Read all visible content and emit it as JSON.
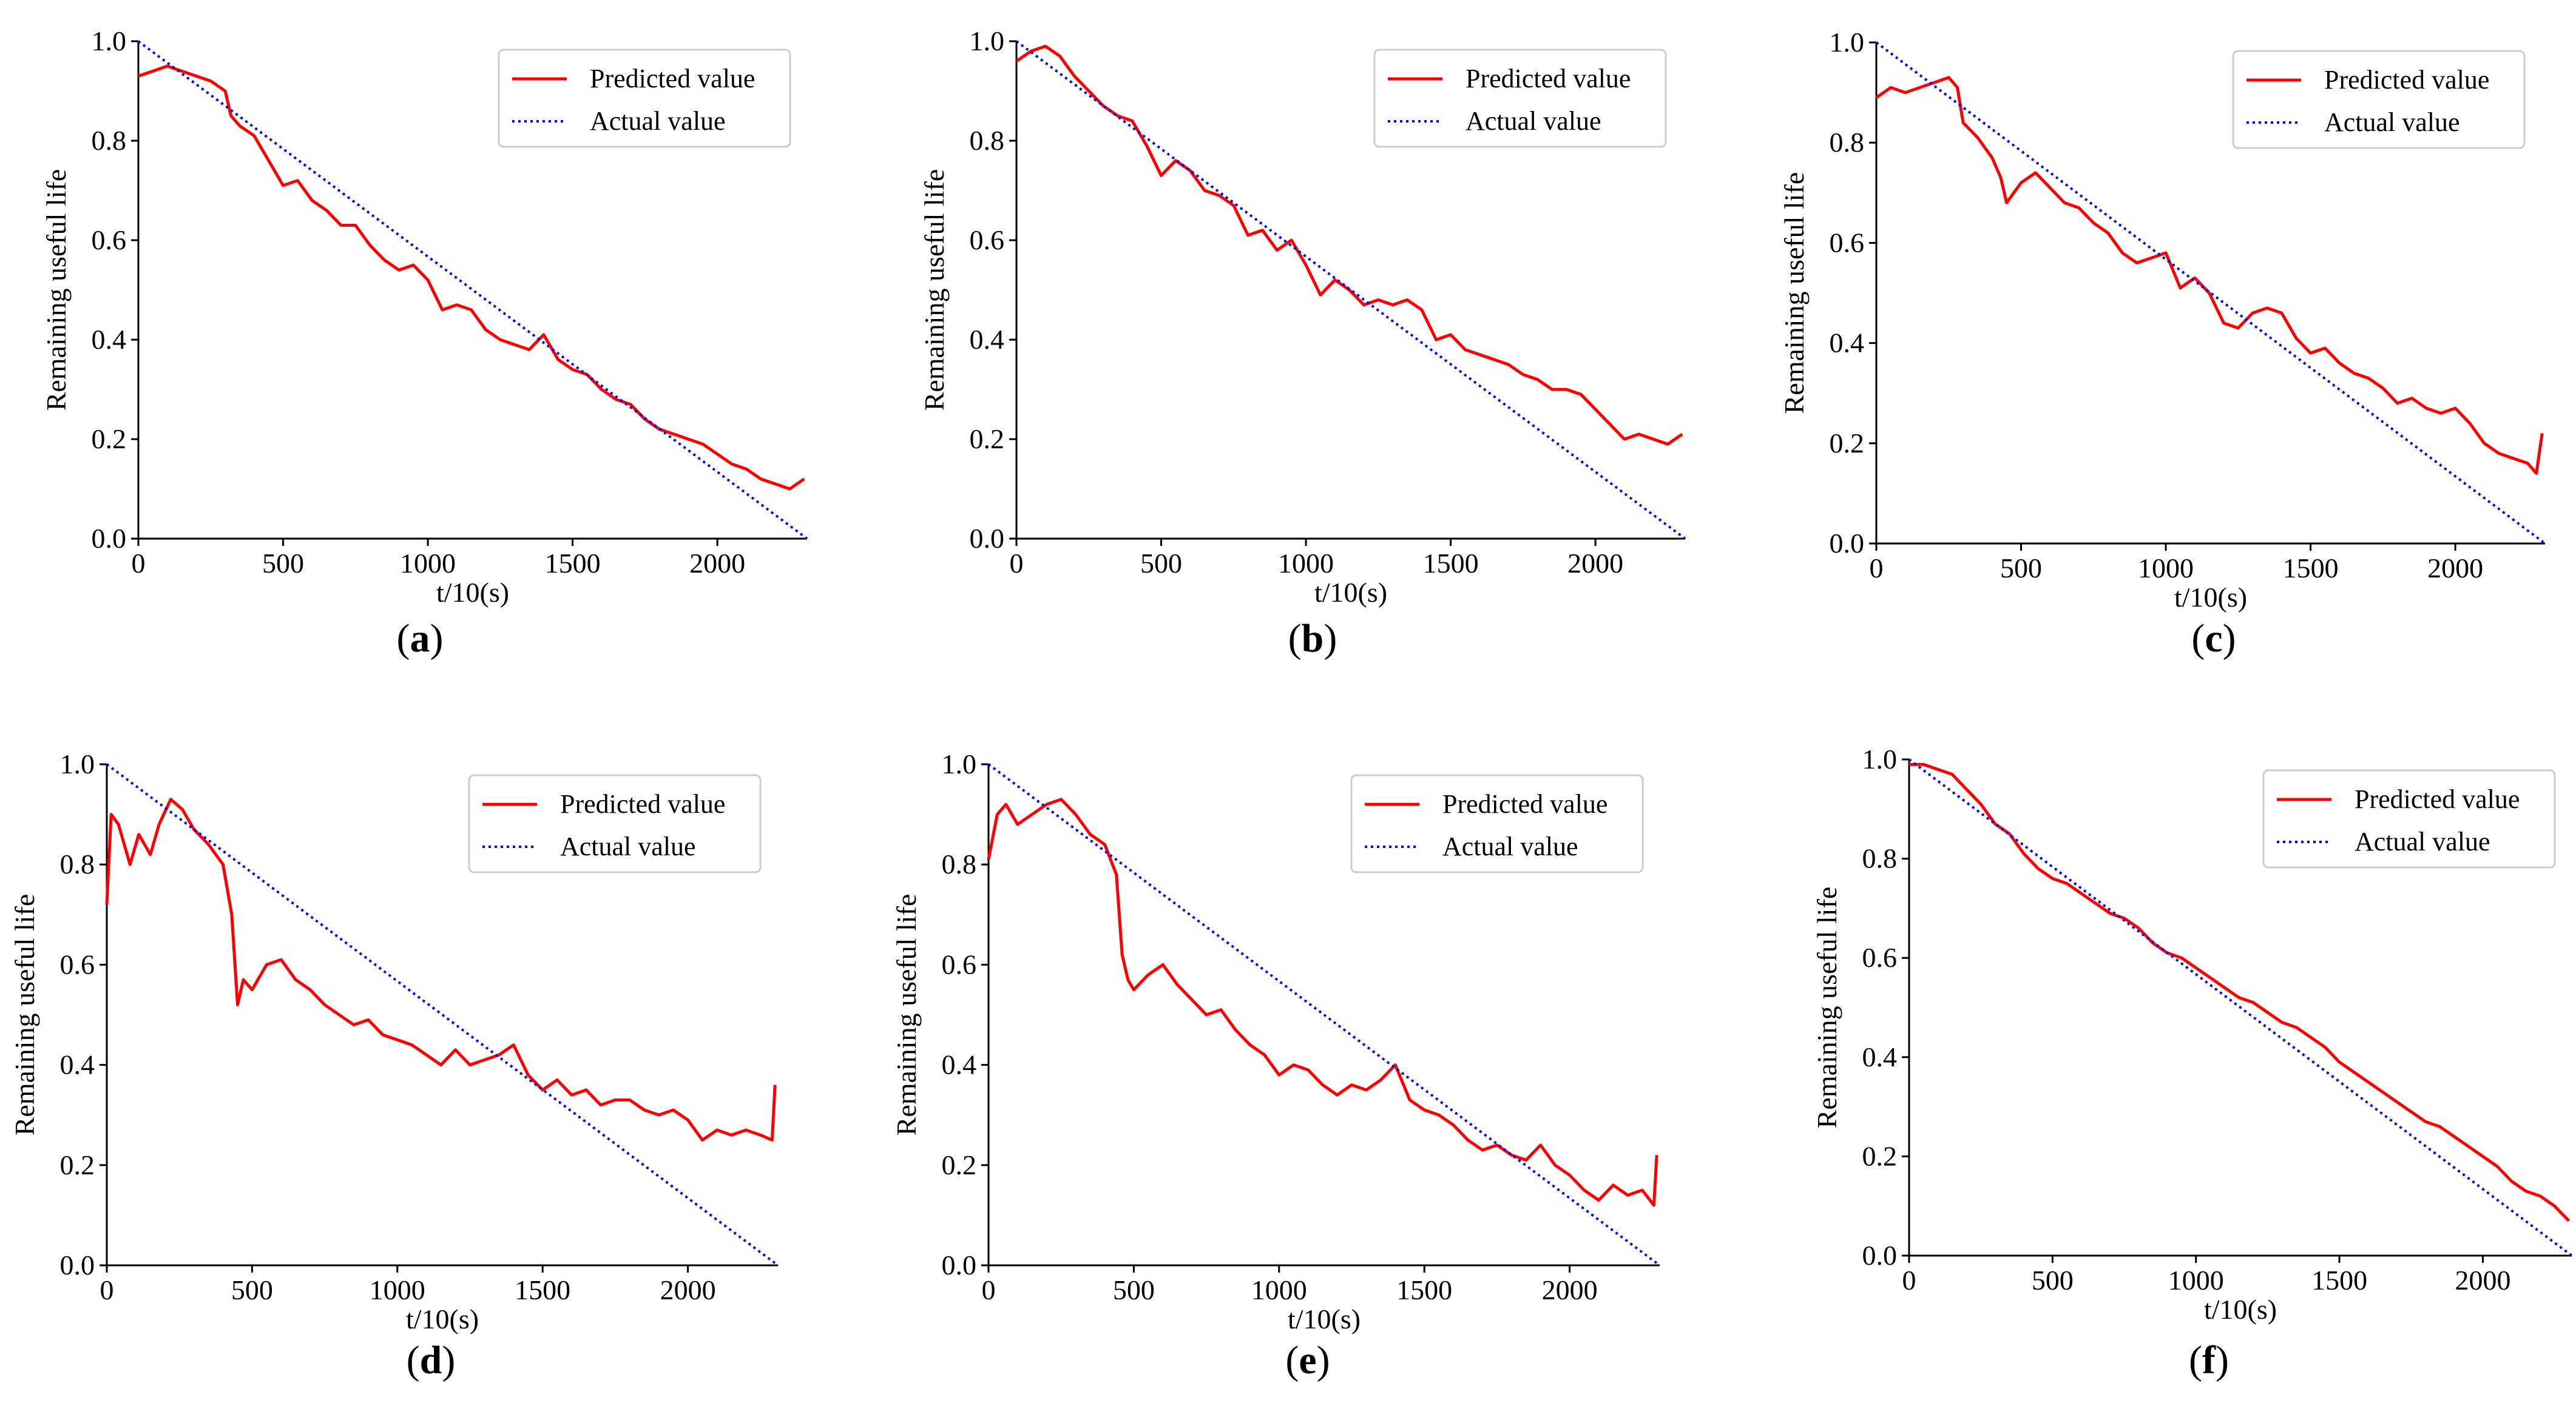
{
  "colors": {
    "predicted": "#ff0000",
    "actual": "#0000ff",
    "axis": "#000000"
  },
  "chart_data": [
    {
      "id": "a",
      "caption": "a",
      "type": "line",
      "xlabel": "t/10(s)",
      "ylabel": "Remaining useful life",
      "xlim": [
        0,
        2310
      ],
      "ylim": [
        0,
        1.0
      ],
      "xticks": [
        "0",
        "500",
        "1000",
        "1500",
        "2000"
      ],
      "yticks": [
        "0.0",
        "0.2",
        "0.4",
        "0.6",
        "0.8",
        "1.0"
      ],
      "legend": {
        "predicted": "Predicted value",
        "actual": "Actual value",
        "position": "upper-right"
      },
      "series": [
        {
          "name": "Predicted value",
          "style": "solid",
          "x": [
            0,
            50,
            100,
            150,
            200,
            250,
            300,
            320,
            350,
            400,
            450,
            500,
            550,
            600,
            650,
            700,
            750,
            800,
            850,
            900,
            950,
            1000,
            1050,
            1100,
            1150,
            1200,
            1250,
            1300,
            1350,
            1400,
            1450,
            1500,
            1550,
            1600,
            1650,
            1700,
            1750,
            1800,
            1850,
            1900,
            1950,
            2000,
            2050,
            2100,
            2150,
            2200,
            2250,
            2300
          ],
          "y": [
            0.93,
            0.94,
            0.95,
            0.94,
            0.93,
            0.92,
            0.9,
            0.85,
            0.83,
            0.81,
            0.76,
            0.71,
            0.72,
            0.68,
            0.66,
            0.63,
            0.63,
            0.59,
            0.56,
            0.54,
            0.55,
            0.52,
            0.46,
            0.47,
            0.46,
            0.42,
            0.4,
            0.39,
            0.38,
            0.41,
            0.36,
            0.34,
            0.33,
            0.3,
            0.28,
            0.27,
            0.24,
            0.22,
            0.21,
            0.2,
            0.19,
            0.17,
            0.15,
            0.14,
            0.12,
            0.11,
            0.1,
            0.12
          ]
        },
        {
          "name": "Actual value",
          "style": "dotted",
          "x": [
            0,
            2310
          ],
          "y": [
            1.0,
            0.0
          ]
        }
      ]
    },
    {
      "id": "b",
      "caption": "b",
      "type": "line",
      "xlabel": "t/10(s)",
      "ylabel": "Remaining useful life",
      "xlim": [
        0,
        2310
      ],
      "ylim": [
        0,
        1.0
      ],
      "xticks": [
        "0",
        "500",
        "1000",
        "1500",
        "2000"
      ],
      "yticks": [
        "0.0",
        "0.2",
        "0.4",
        "0.6",
        "0.8",
        "1.0"
      ],
      "legend": {
        "predicted": "Predicted value",
        "actual": "Actual value",
        "position": "upper-right"
      },
      "series": [
        {
          "name": "Predicted value",
          "style": "solid",
          "x": [
            0,
            50,
            100,
            150,
            200,
            250,
            300,
            350,
            400,
            450,
            500,
            550,
            600,
            650,
            700,
            750,
            800,
            850,
            900,
            950,
            1000,
            1050,
            1100,
            1150,
            1200,
            1250,
            1300,
            1350,
            1400,
            1450,
            1500,
            1550,
            1600,
            1650,
            1700,
            1750,
            1800,
            1850,
            1900,
            1950,
            2000,
            2050,
            2100,
            2150,
            2200,
            2250,
            2300
          ],
          "y": [
            0.96,
            0.98,
            0.99,
            0.97,
            0.93,
            0.9,
            0.87,
            0.85,
            0.84,
            0.79,
            0.73,
            0.76,
            0.74,
            0.7,
            0.69,
            0.67,
            0.61,
            0.62,
            0.58,
            0.6,
            0.55,
            0.49,
            0.52,
            0.5,
            0.47,
            0.48,
            0.47,
            0.48,
            0.46,
            0.4,
            0.41,
            0.38,
            0.37,
            0.36,
            0.35,
            0.33,
            0.32,
            0.3,
            0.3,
            0.29,
            0.26,
            0.23,
            0.2,
            0.21,
            0.2,
            0.19,
            0.21
          ]
        },
        {
          "name": "Actual value",
          "style": "dotted",
          "x": [
            0,
            2310
          ],
          "y": [
            1.0,
            0.0
          ]
        }
      ]
    },
    {
      "id": "c",
      "caption": "c",
      "type": "line",
      "xlabel": "t/10(s)",
      "ylabel": "Remaining useful life",
      "xlim": [
        0,
        2310
      ],
      "ylim": [
        0,
        1.0
      ],
      "xticks": [
        "0",
        "500",
        "1000",
        "1500",
        "2000"
      ],
      "yticks": [
        "0.0",
        "0.2",
        "0.4",
        "0.6",
        "0.8",
        "1.0"
      ],
      "legend": {
        "predicted": "Predicted value",
        "actual": "Actual value",
        "position": "upper-right"
      },
      "series": [
        {
          "name": "Predicted value",
          "style": "solid",
          "x": [
            0,
            50,
            100,
            150,
            200,
            250,
            280,
            300,
            350,
            400,
            430,
            450,
            500,
            550,
            600,
            650,
            700,
            750,
            800,
            850,
            900,
            950,
            1000,
            1050,
            1100,
            1150,
            1200,
            1250,
            1300,
            1350,
            1400,
            1450,
            1500,
            1550,
            1600,
            1650,
            1700,
            1750,
            1800,
            1850,
            1900,
            1950,
            2000,
            2050,
            2100,
            2150,
            2200,
            2250,
            2280,
            2300
          ],
          "y": [
            0.89,
            0.91,
            0.9,
            0.91,
            0.92,
            0.93,
            0.91,
            0.84,
            0.81,
            0.77,
            0.73,
            0.68,
            0.72,
            0.74,
            0.71,
            0.68,
            0.67,
            0.64,
            0.62,
            0.58,
            0.56,
            0.57,
            0.58,
            0.51,
            0.53,
            0.5,
            0.44,
            0.43,
            0.46,
            0.47,
            0.46,
            0.41,
            0.38,
            0.39,
            0.36,
            0.34,
            0.33,
            0.31,
            0.28,
            0.29,
            0.27,
            0.26,
            0.27,
            0.24,
            0.2,
            0.18,
            0.17,
            0.16,
            0.14,
            0.22
          ]
        },
        {
          "name": "Actual value",
          "style": "dotted",
          "x": [
            0,
            2310
          ],
          "y": [
            1.0,
            0.0
          ]
        }
      ]
    },
    {
      "id": "d",
      "caption": "d",
      "type": "line",
      "xlabel": "t/10(s)",
      "ylabel": "Remaining useful life",
      "xlim": [
        0,
        2310
      ],
      "ylim": [
        0,
        1.0
      ],
      "xticks": [
        "0",
        "500",
        "1000",
        "1500",
        "2000"
      ],
      "yticks": [
        "0.0",
        "0.2",
        "0.4",
        "0.6",
        "0.8",
        "1.0"
      ],
      "legend": {
        "predicted": "Predicted value",
        "actual": "Actual value",
        "position": "upper-right"
      },
      "series": [
        {
          "name": "Predicted value",
          "style": "solid",
          "x": [
            0,
            15,
            40,
            80,
            110,
            150,
            180,
            220,
            260,
            300,
            350,
            400,
            430,
            450,
            470,
            500,
            550,
            600,
            650,
            700,
            750,
            800,
            850,
            900,
            950,
            1000,
            1050,
            1100,
            1150,
            1200,
            1250,
            1300,
            1350,
            1400,
            1450,
            1500,
            1550,
            1600,
            1650,
            1700,
            1750,
            1800,
            1850,
            1900,
            1950,
            2000,
            2050,
            2100,
            2150,
            2200,
            2250,
            2290,
            2300
          ],
          "y": [
            0.72,
            0.9,
            0.88,
            0.8,
            0.86,
            0.82,
            0.88,
            0.93,
            0.91,
            0.87,
            0.84,
            0.8,
            0.7,
            0.52,
            0.57,
            0.55,
            0.6,
            0.61,
            0.57,
            0.55,
            0.52,
            0.5,
            0.48,
            0.49,
            0.46,
            0.45,
            0.44,
            0.42,
            0.4,
            0.43,
            0.4,
            0.41,
            0.42,
            0.44,
            0.38,
            0.35,
            0.37,
            0.34,
            0.35,
            0.32,
            0.33,
            0.33,
            0.31,
            0.3,
            0.31,
            0.29,
            0.25,
            0.27,
            0.26,
            0.27,
            0.26,
            0.25,
            0.36
          ]
        },
        {
          "name": "Actual value",
          "style": "dotted",
          "x": [
            0,
            2310
          ],
          "y": [
            1.0,
            0.0
          ]
        }
      ]
    },
    {
      "id": "e",
      "caption": "e",
      "type": "line",
      "xlabel": "t/10(s)",
      "ylabel": "Remaining useful life",
      "xlim": [
        0,
        2310
      ],
      "ylim": [
        0,
        1.0
      ],
      "xticks": [
        "0",
        "500",
        "1000",
        "1500",
        "2000"
      ],
      "yticks": [
        "0.0",
        "0.2",
        "0.4",
        "0.6",
        "0.8",
        "1.0"
      ],
      "legend": {
        "predicted": "Predicted value",
        "actual": "Actual value",
        "position": "upper-right"
      },
      "series": [
        {
          "name": "Predicted value",
          "style": "solid",
          "x": [
            0,
            30,
            60,
            100,
            150,
            200,
            250,
            300,
            350,
            400,
            440,
            460,
            480,
            500,
            550,
            600,
            650,
            700,
            750,
            800,
            850,
            900,
            950,
            1000,
            1050,
            1100,
            1150,
            1200,
            1250,
            1300,
            1350,
            1400,
            1450,
            1500,
            1550,
            1600,
            1650,
            1700,
            1750,
            1800,
            1850,
            1900,
            1950,
            2000,
            2050,
            2100,
            2150,
            2200,
            2250,
            2290,
            2300
          ],
          "y": [
            0.81,
            0.9,
            0.92,
            0.88,
            0.9,
            0.92,
            0.93,
            0.9,
            0.86,
            0.84,
            0.78,
            0.62,
            0.57,
            0.55,
            0.58,
            0.6,
            0.56,
            0.53,
            0.5,
            0.51,
            0.47,
            0.44,
            0.42,
            0.38,
            0.4,
            0.39,
            0.36,
            0.34,
            0.36,
            0.35,
            0.37,
            0.4,
            0.33,
            0.31,
            0.3,
            0.28,
            0.25,
            0.23,
            0.24,
            0.22,
            0.21,
            0.24,
            0.2,
            0.18,
            0.15,
            0.13,
            0.16,
            0.14,
            0.15,
            0.12,
            0.22
          ]
        },
        {
          "name": "Actual value",
          "style": "dotted",
          "x": [
            0,
            2310
          ],
          "y": [
            1.0,
            0.0
          ]
        }
      ]
    },
    {
      "id": "f",
      "caption": "f",
      "type": "line",
      "xlabel": "t/10(s)",
      "ylabel": "Remaining useful life",
      "xlim": [
        0,
        2310
      ],
      "ylim": [
        0,
        1.0
      ],
      "xticks": [
        "0",
        "500",
        "1000",
        "1500",
        "2000"
      ],
      "yticks": [
        "0.0",
        "0.2",
        "0.4",
        "0.6",
        "0.8",
        "1.0"
      ],
      "legend": {
        "predicted": "Predicted value",
        "actual": "Actual value",
        "position": "upper-right"
      },
      "series": [
        {
          "name": "Predicted value",
          "style": "solid",
          "x": [
            0,
            50,
            100,
            150,
            200,
            250,
            300,
            350,
            400,
            450,
            500,
            550,
            600,
            650,
            700,
            750,
            800,
            850,
            900,
            950,
            1000,
            1050,
            1100,
            1150,
            1200,
            1250,
            1300,
            1350,
            1400,
            1450,
            1500,
            1550,
            1600,
            1650,
            1700,
            1750,
            1800,
            1850,
            1900,
            1950,
            2000,
            2050,
            2100,
            2150,
            2200,
            2250,
            2300
          ],
          "y": [
            0.99,
            0.99,
            0.98,
            0.97,
            0.94,
            0.91,
            0.87,
            0.85,
            0.81,
            0.78,
            0.76,
            0.75,
            0.73,
            0.71,
            0.69,
            0.68,
            0.66,
            0.63,
            0.61,
            0.6,
            0.58,
            0.56,
            0.54,
            0.52,
            0.51,
            0.49,
            0.47,
            0.46,
            0.44,
            0.42,
            0.39,
            0.37,
            0.35,
            0.33,
            0.31,
            0.29,
            0.27,
            0.26,
            0.24,
            0.22,
            0.2,
            0.18,
            0.15,
            0.13,
            0.12,
            0.1,
            0.07
          ]
        },
        {
          "name": "Actual value",
          "style": "dotted",
          "x": [
            0,
            2310
          ],
          "y": [
            1.0,
            0.0
          ]
        }
      ]
    }
  ]
}
